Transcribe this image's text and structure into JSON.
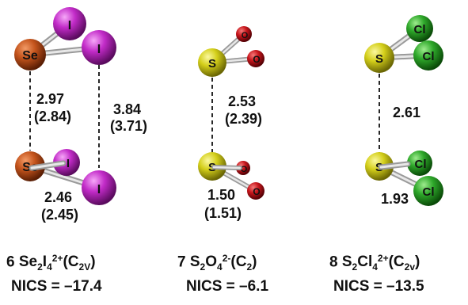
{
  "colors": {
    "selenium": "#c4541c",
    "iodine": "#c22bc8",
    "oxygen": "#c8161c",
    "sulfur": "#d4cf1a",
    "chlorine": "#2ea82a",
    "bond": "#b8b8b8",
    "dashed": "#111111"
  },
  "molecules": [
    {
      "id": "se2i4",
      "atoms": {
        "se": "Se",
        "i": "I"
      },
      "measurements": {
        "d1": "2.97",
        "d1_calc": "(2.84)",
        "d2": "3.84",
        "d2_calc": "(3.71)",
        "bond": "2.46",
        "bond_calc": "(2.45)"
      },
      "caption": {
        "number": "6",
        "formula": [
          {
            "t": "Se",
            "s": ""
          },
          {
            "t": "2",
            "s": "sub"
          },
          {
            "t": "I",
            "s": ""
          },
          {
            "t": "4",
            "s": "sub"
          },
          {
            "t": "2+",
            "s": "sup"
          },
          {
            "t": "(C",
            "s": ""
          },
          {
            "t": "2V",
            "s": "sub"
          },
          {
            "t": ")",
            "s": ""
          }
        ],
        "nics": "NICS = –17.4"
      }
    },
    {
      "id": "s2o4",
      "atoms": {
        "s": "S",
        "o": "O"
      },
      "measurements": {
        "d1": "2.53",
        "d1_calc": "(2.39)",
        "bond": "1.50",
        "bond_calc": "(1.51)"
      },
      "caption": {
        "number": "7",
        "formula": [
          {
            "t": "S",
            "s": ""
          },
          {
            "t": "2",
            "s": "sub"
          },
          {
            "t": "O",
            "s": ""
          },
          {
            "t": "4",
            "s": "sub"
          },
          {
            "t": "2-",
            "s": "sup"
          },
          {
            "t": "(C",
            "s": ""
          },
          {
            "t": "2",
            "s": "sub"
          },
          {
            "t": ")",
            "s": ""
          }
        ],
        "nics": "NICS = –6.1"
      }
    },
    {
      "id": "s2cl4",
      "atoms": {
        "s": "S",
        "cl": "Cl"
      },
      "measurements": {
        "d1": "2.61",
        "bond": "1.93"
      },
      "caption": {
        "number": "8",
        "formula": [
          {
            "t": "S",
            "s": ""
          },
          {
            "t": "2",
            "s": "sub"
          },
          {
            "t": "Cl",
            "s": ""
          },
          {
            "t": "4",
            "s": "sub"
          },
          {
            "t": "2+",
            "s": "sup"
          },
          {
            "t": "(C",
            "s": ""
          },
          {
            "t": "2v",
            "s": "sub"
          },
          {
            "t": ")",
            "s": ""
          }
        ],
        "nics": "NICS = –13.5"
      }
    }
  ]
}
